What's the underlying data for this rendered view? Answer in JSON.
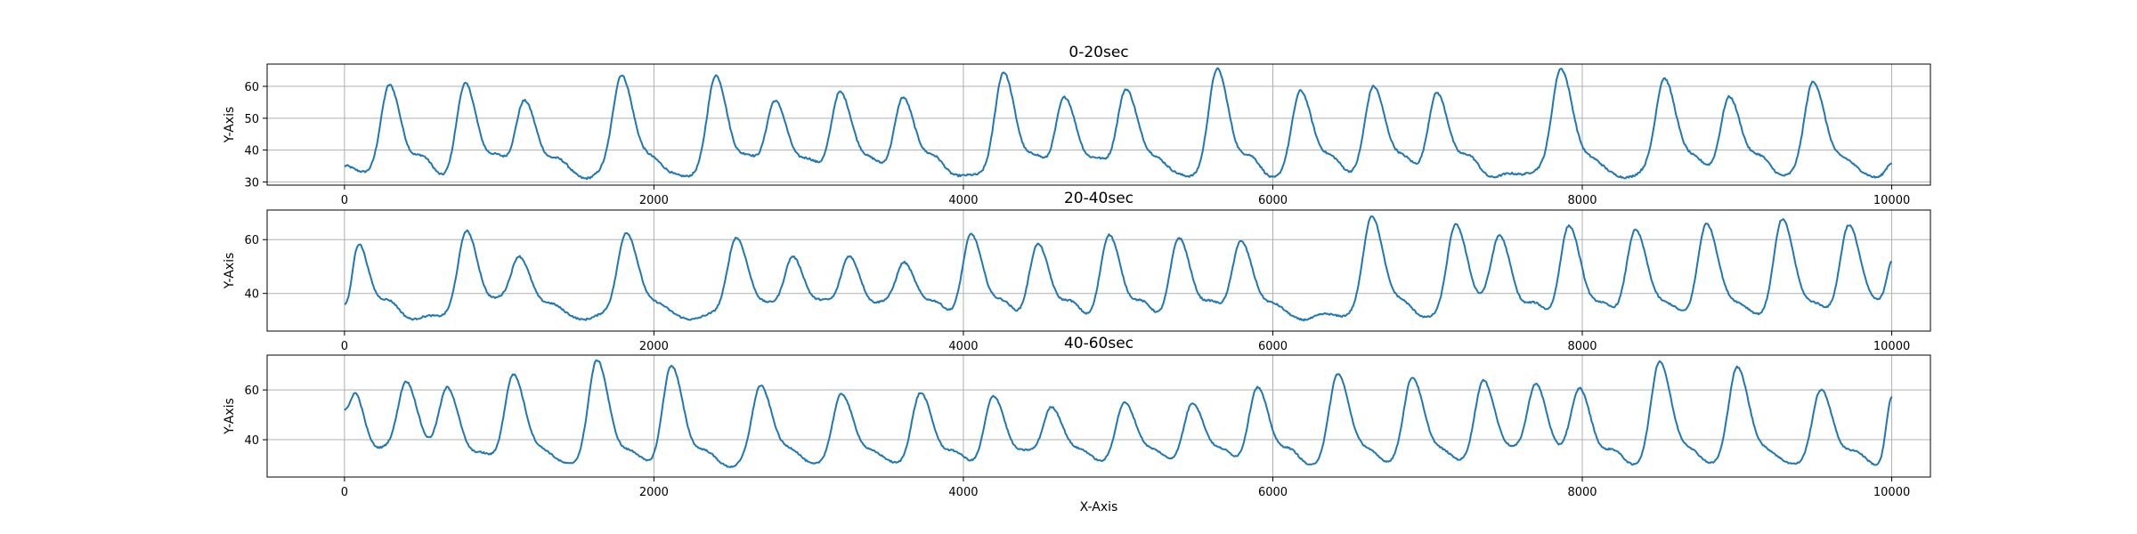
{
  "figure": {
    "background": "#ffffff",
    "line_color": "#1f77b4"
  },
  "chart_data": [
    {
      "type": "line",
      "title": "0-20sec",
      "ylabel": "Y-Axis",
      "xlabel": "",
      "xlim": [
        -500,
        10250
      ],
      "ylim": [
        29,
        67
      ],
      "x_ticks": [
        0,
        2000,
        4000,
        6000,
        8000,
        10000
      ],
      "y_ticks": [
        30,
        40,
        50,
        60
      ],
      "grid": true,
      "baseline": 33,
      "x_end": 10000,
      "start_value": 35,
      "end_value": 36,
      "peaks": [
        {
          "x": 290,
          "y": 60
        },
        {
          "x": 780,
          "y": 61
        },
        {
          "x": 1160,
          "y": 57
        },
        {
          "x": 1790,
          "y": 64
        },
        {
          "x": 2400,
          "y": 63
        },
        {
          "x": 2780,
          "y": 57
        },
        {
          "x": 3200,
          "y": 60
        },
        {
          "x": 3610,
          "y": 58
        },
        {
          "x": 4260,
          "y": 64
        },
        {
          "x": 4650,
          "y": 58
        },
        {
          "x": 5050,
          "y": 61
        },
        {
          "x": 5640,
          "y": 65
        },
        {
          "x": 6180,
          "y": 59
        },
        {
          "x": 6650,
          "y": 61
        },
        {
          "x": 7060,
          "y": 59
        },
        {
          "x": 7860,
          "y": 66
        },
        {
          "x": 8530,
          "y": 63
        },
        {
          "x": 8950,
          "y": 58
        },
        {
          "x": 9490,
          "y": 62
        }
      ]
    },
    {
      "type": "line",
      "title": "20-40sec",
      "ylabel": "Y-Axis",
      "xlabel": "",
      "xlim": [
        -500,
        10250
      ],
      "ylim": [
        26,
        71
      ],
      "x_ticks": [
        0,
        2000,
        4000,
        6000,
        8000,
        10000
      ],
      "y_ticks": [
        40,
        60
      ],
      "grid": true,
      "baseline": 32,
      "x_end": 10000,
      "start_value": 36,
      "end_value": 52,
      "peaks": [
        {
          "x": 80,
          "y": 60
        },
        {
          "x": 790,
          "y": 63
        },
        {
          "x": 1130,
          "y": 55
        },
        {
          "x": 1820,
          "y": 63
        },
        {
          "x": 2530,
          "y": 61
        },
        {
          "x": 2900,
          "y": 55
        },
        {
          "x": 3260,
          "y": 55
        },
        {
          "x": 3620,
          "y": 53
        },
        {
          "x": 4050,
          "y": 63
        },
        {
          "x": 4480,
          "y": 59
        },
        {
          "x": 4940,
          "y": 62
        },
        {
          "x": 5390,
          "y": 61
        },
        {
          "x": 5790,
          "y": 61
        },
        {
          "x": 6640,
          "y": 69
        },
        {
          "x": 7180,
          "y": 66
        },
        {
          "x": 7470,
          "y": 60
        },
        {
          "x": 7910,
          "y": 66
        },
        {
          "x": 8340,
          "y": 65
        },
        {
          "x": 8800,
          "y": 67
        },
        {
          "x": 9290,
          "y": 68
        },
        {
          "x": 9720,
          "y": 67
        }
      ]
    },
    {
      "type": "line",
      "title": "40-60sec",
      "ylabel": "Y-Axis",
      "xlabel": "X-Axis",
      "xlim": [
        -500,
        10250
      ],
      "ylim": [
        25,
        74
      ],
      "x_ticks": [
        0,
        2000,
        4000,
        6000,
        8000,
        10000
      ],
      "y_ticks": [
        40,
        60
      ],
      "grid": true,
      "baseline": 31,
      "x_end": 10000,
      "start_value": 52,
      "end_value": 57,
      "peaks": [
        {
          "x": 50,
          "y": 61
        },
        {
          "x": 400,
          "y": 65
        },
        {
          "x": 670,
          "y": 59
        },
        {
          "x": 1090,
          "y": 68
        },
        {
          "x": 1630,
          "y": 72
        },
        {
          "x": 2110,
          "y": 70
        },
        {
          "x": 2690,
          "y": 62
        },
        {
          "x": 3210,
          "y": 59
        },
        {
          "x": 3720,
          "y": 59
        },
        {
          "x": 4190,
          "y": 58
        },
        {
          "x": 4570,
          "y": 55
        },
        {
          "x": 5040,
          "y": 56
        },
        {
          "x": 5480,
          "y": 56
        },
        {
          "x": 5900,
          "y": 62
        },
        {
          "x": 6420,
          "y": 67
        },
        {
          "x": 6900,
          "y": 66
        },
        {
          "x": 7360,
          "y": 65
        },
        {
          "x": 7700,
          "y": 63
        },
        {
          "x": 7990,
          "y": 59
        },
        {
          "x": 8500,
          "y": 72
        },
        {
          "x": 9000,
          "y": 70
        },
        {
          "x": 9540,
          "y": 60
        }
      ]
    }
  ]
}
